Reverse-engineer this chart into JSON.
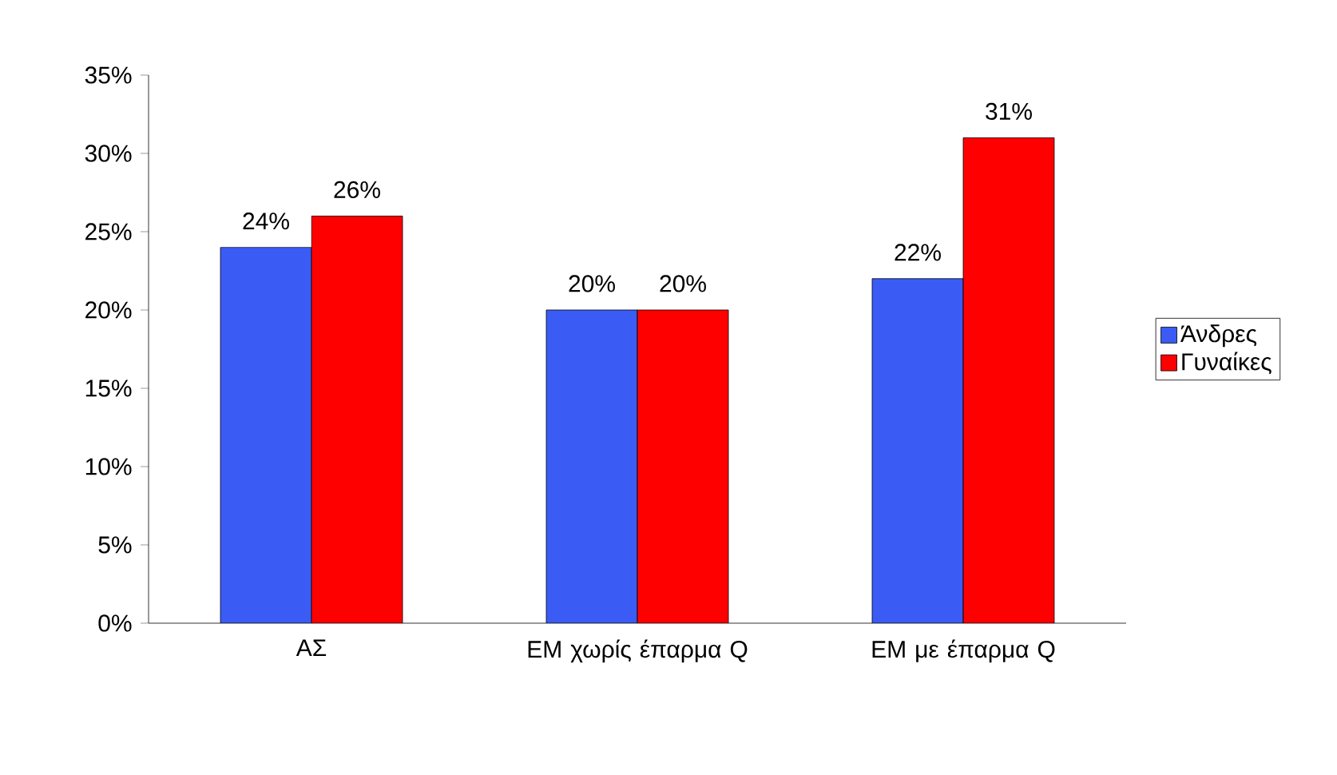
{
  "chart_data": {
    "type": "bar",
    "categories": [
      "ΑΣ",
      "ΕΜ χωρίς έπαρμα Q",
      "ΕΜ με έπαρμα Q"
    ],
    "series": [
      {
        "name": "Άνδρες",
        "color": "#3a5cf5",
        "values": [
          24,
          20,
          22
        ],
        "value_labels": [
          "24%",
          "20%",
          "22%"
        ]
      },
      {
        "name": "Γυναίκες",
        "color": "#ff0000",
        "values": [
          26,
          20,
          31
        ],
        "value_labels": [
          "26%",
          "20%",
          "31%"
        ]
      }
    ],
    "ylim": [
      0,
      35
    ],
    "yticks": [
      {
        "value": 0,
        "label": "0%"
      },
      {
        "value": 5,
        "label": "5%"
      },
      {
        "value": 10,
        "label": "10%"
      },
      {
        "value": 15,
        "label": "15%"
      },
      {
        "value": 20,
        "label": "20%"
      },
      {
        "value": 25,
        "label": "25%"
      },
      {
        "value": 30,
        "label": "30%"
      },
      {
        "value": 35,
        "label": "35%"
      }
    ],
    "grid": false,
    "legend": "right"
  }
}
